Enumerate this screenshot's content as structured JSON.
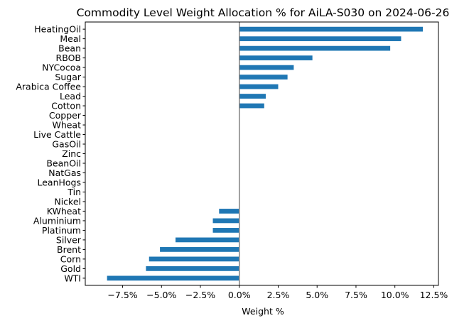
{
  "chart_data": {
    "type": "bar",
    "orientation": "horizontal",
    "title": "Commodity Level Weight Allocation % for AiLA-S030 on 2024-06-26",
    "xlabel": "Weight %",
    "ylabel": "",
    "xlim": [
      -9.9,
      12.8
    ],
    "xticks": [
      -7.5,
      -5.0,
      -2.5,
      0.0,
      2.5,
      5.0,
      7.5,
      10.0,
      12.5
    ],
    "xtick_labels": [
      "−7.5%",
      "−5.0%",
      "−2.5%",
      "0.0%",
      "2.5%",
      "5.0%",
      "7.5%",
      "10.0%",
      "12.5%"
    ],
    "categories": [
      "HeatingOil",
      "Meal",
      "Bean",
      "RBOB",
      "NYCocoa",
      "Sugar",
      "Arabica Coffee",
      "Lead",
      "Cotton",
      "Copper",
      "Wheat",
      "Live Cattle",
      "GasOil",
      "Zinc",
      "BeanOil",
      "NatGas",
      "LeanHogs",
      "Tin",
      "Nickel",
      "KWheat",
      "Aluminium",
      "Platinum",
      "Silver",
      "Brent",
      "Corn",
      "Gold",
      "WTI"
    ],
    "values": [
      11.8,
      10.4,
      9.7,
      4.7,
      3.5,
      3.1,
      2.5,
      1.7,
      1.6,
      0,
      0,
      0,
      0,
      0,
      0,
      0,
      0,
      0,
      0,
      -1.3,
      -1.7,
      -1.7,
      -4.1,
      -5.1,
      -5.8,
      -6.0,
      -8.5
    ],
    "bar_color": "#1f77b4",
    "zero_line_color": "#808080",
    "grid": false,
    "legend": "none"
  }
}
